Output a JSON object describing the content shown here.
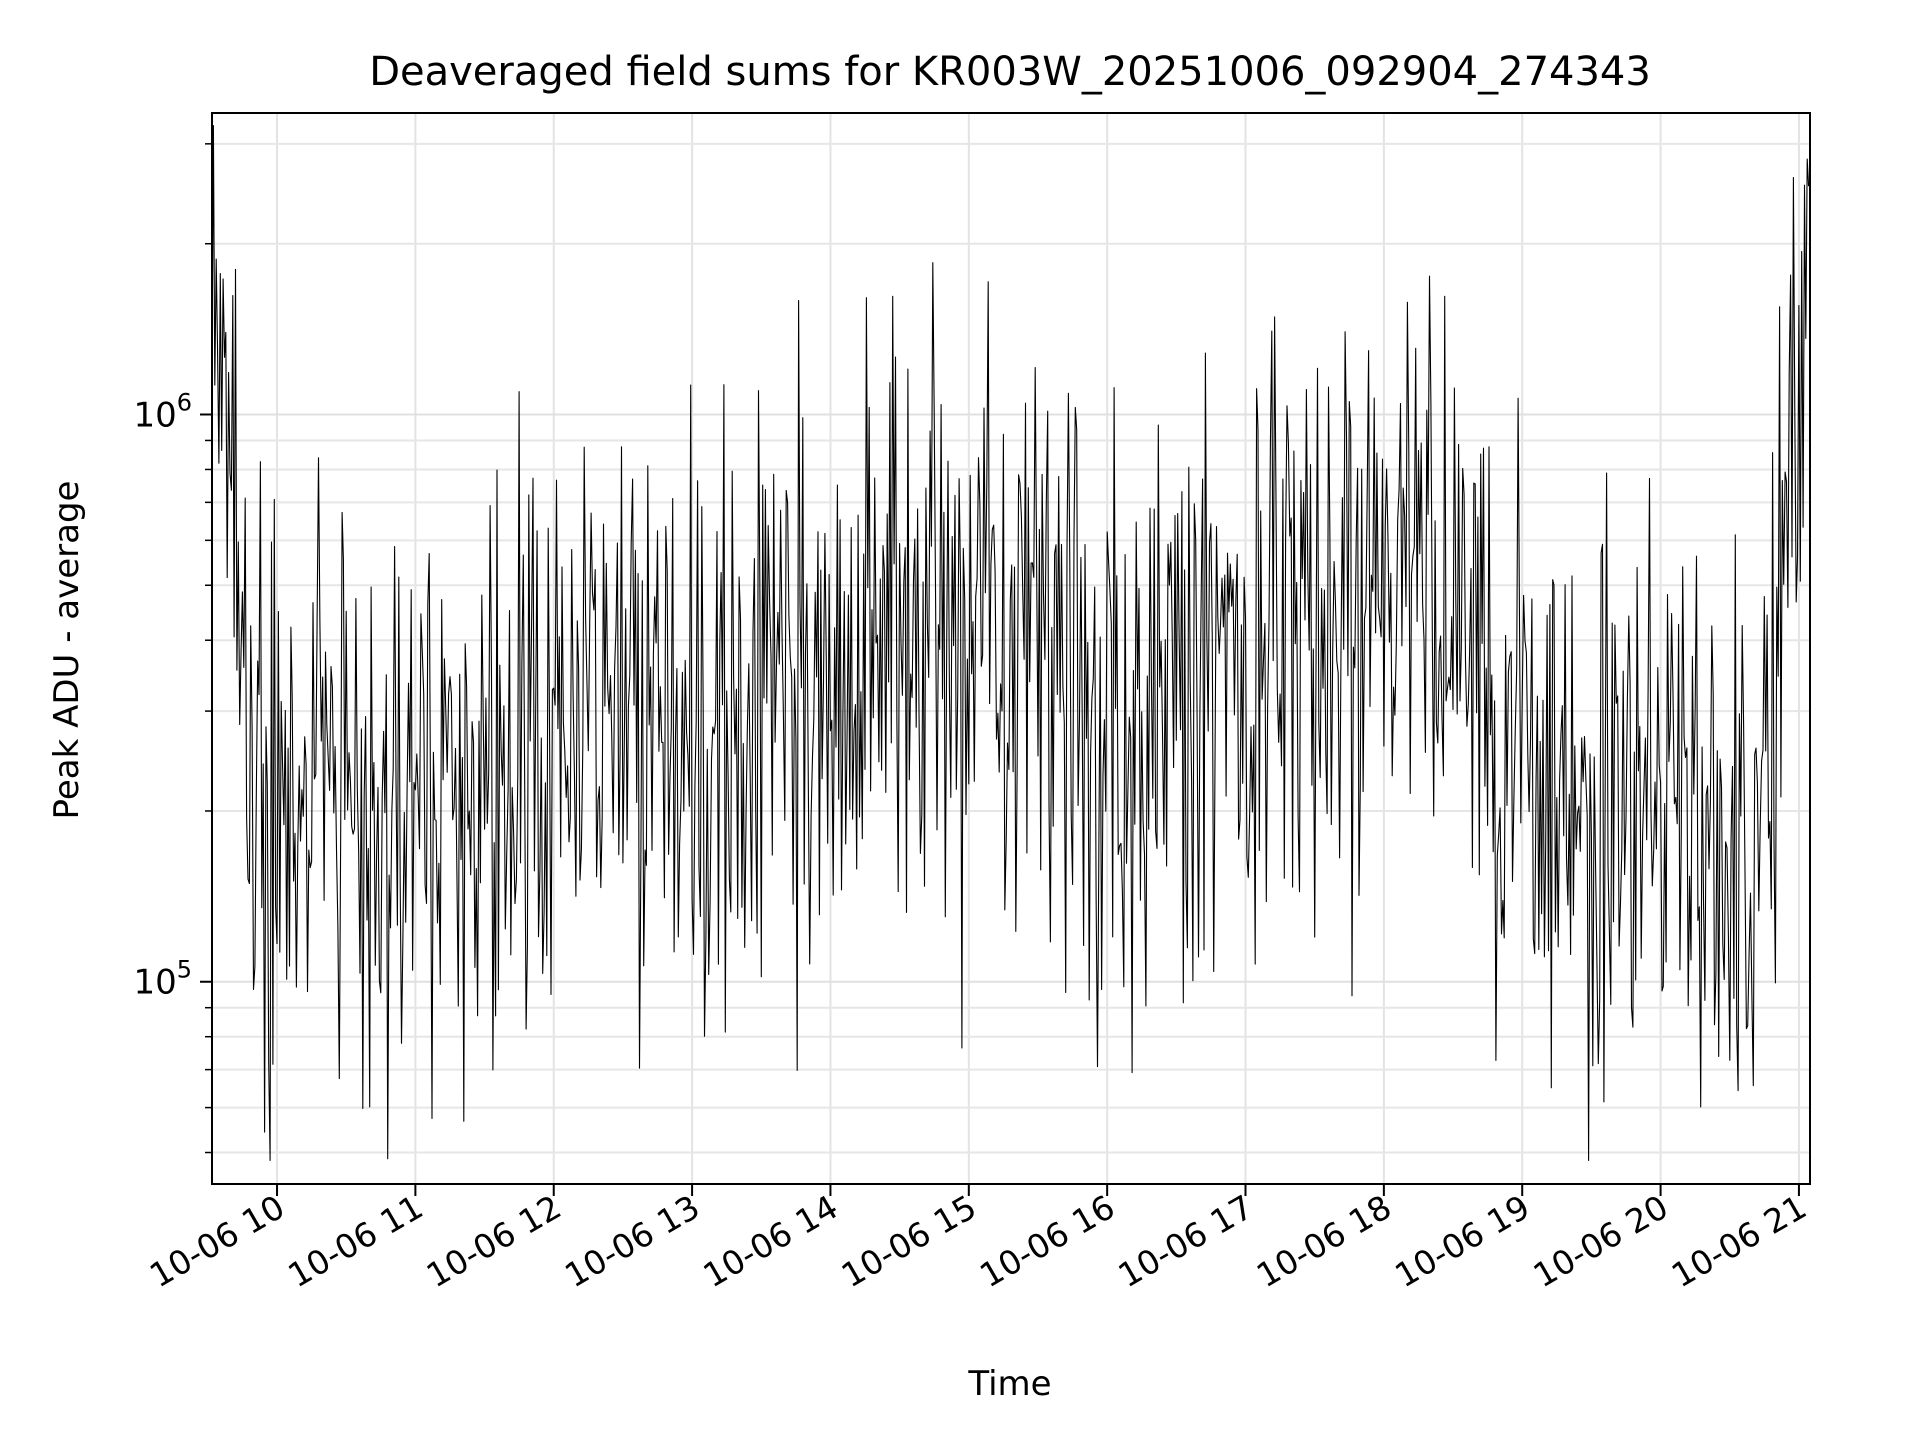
{
  "chart_data": {
    "type": "line",
    "title": "Deaveraged field sums for KR003W_20251006_092904_274343",
    "xlabel": "Time",
    "ylabel": "Peak ADU - average",
    "yscale": "log",
    "ylim": [
      44000,
      3400000
    ],
    "xlim_hours": [
      9.53,
      21.08
    ],
    "grid": true,
    "x_tick_values": [
      10,
      11,
      12,
      13,
      14,
      15,
      16,
      17,
      18,
      19,
      20,
      21
    ],
    "x_tick_labels": [
      "10-06 10",
      "10-06 11",
      "10-06 12",
      "10-06 13",
      "10-06 14",
      "10-06 15",
      "10-06 16",
      "10-06 17",
      "10-06 18",
      "10-06 19",
      "10-06 20",
      "10-06 21"
    ],
    "y_major_ticks": [
      {
        "value": 100000,
        "base": "10",
        "exp": "5"
      },
      {
        "value": 1000000,
        "base": "10",
        "exp": "6"
      }
    ],
    "y_minor_ticks": [
      50000,
      60000,
      70000,
      80000,
      90000,
      200000,
      300000,
      400000,
      500000,
      600000,
      700000,
      800000,
      900000,
      2000000,
      3000000
    ],
    "series": [
      {
        "name": "field sums",
        "color": "#000000",
        "sample_interval_hours": 0.01,
        "envelope_note": "dense noisy signal; values range roughly 5e4 to 3e6",
        "trend": {
          "t_hours": [
            9.53,
            9.6,
            9.7,
            9.8,
            10.0,
            10.5,
            11.0,
            11.5,
            12.0,
            12.5,
            13.0,
            13.5,
            14.0,
            14.5,
            15.0,
            15.5,
            16.0,
            16.5,
            17.0,
            17.5,
            18.0,
            18.5,
            19.0,
            19.5,
            20.0,
            20.5,
            20.8,
            20.9,
            21.0,
            21.08
          ],
          "median": [
            1500000,
            1100000,
            600000,
            300000,
            200000,
            220000,
            210000,
            240000,
            280000,
            300000,
            310000,
            290000,
            320000,
            380000,
            450000,
            360000,
            300000,
            320000,
            360000,
            480000,
            550000,
            480000,
            220000,
            200000,
            190000,
            170000,
            220000,
            700000,
            1500000,
            2000000
          ]
        }
      }
    ]
  }
}
